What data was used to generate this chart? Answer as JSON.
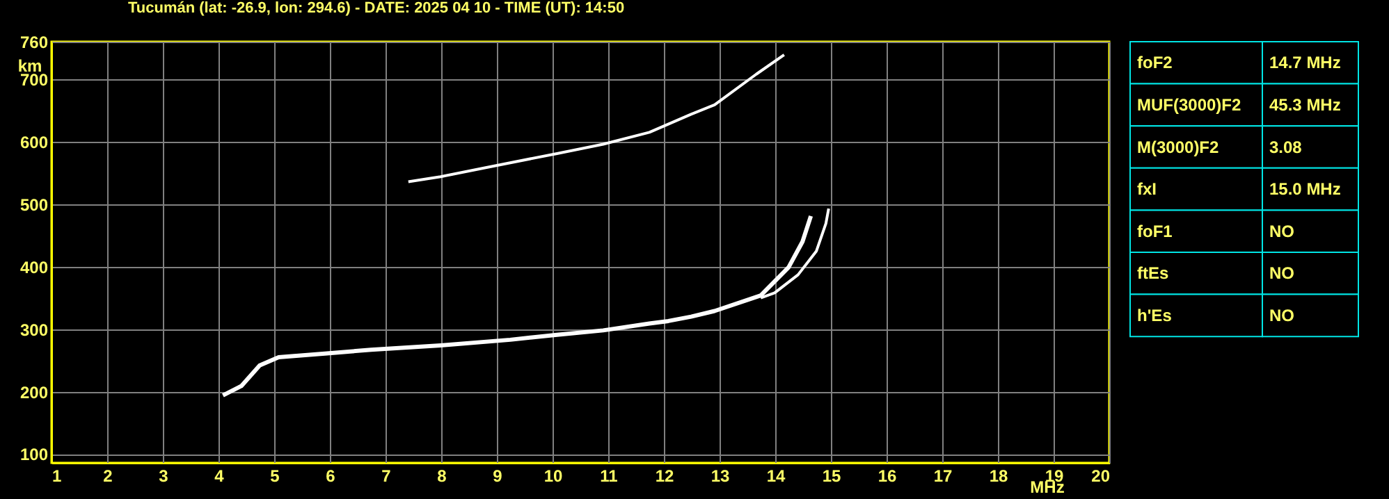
{
  "chart_data": {
    "type": "line",
    "title": "Tucumán (lat: -26.9, lon: 294.6) - DATE: 2025 04 10 - TIME (UT): 14:50",
    "xlabel": "MHz",
    "ylabel": "km",
    "xlim": [
      1,
      20
    ],
    "xticks": [
      1,
      2,
      3,
      4,
      5,
      6,
      7,
      8,
      9,
      10,
      11,
      12,
      13,
      14,
      15,
      16,
      17,
      18,
      19,
      20
    ],
    "ylim": [
      86,
      760
    ],
    "yticks": [
      100,
      200,
      300,
      400,
      500,
      600,
      700,
      760
    ],
    "grid": true,
    "marker": "none",
    "line_style": "solid",
    "series": [
      {
        "color": "#ffffff",
        "x": [
          4.08,
          4.41,
          4.74,
          5.08,
          5.91,
          6.74,
          7.99,
          9.24,
          10.08,
          10.91,
          11.74,
          12.08,
          12.49,
          12.91,
          13.74,
          14.24,
          14.49,
          14.64
        ],
        "values": [
          194,
          209,
          242,
          255,
          261,
          267,
          274,
          283,
          291,
          298,
          309,
          313,
          320,
          329,
          354,
          399,
          440,
          481
        ]
      },
      {
        "color": "#ffffff",
        "x": [
          13.74,
          13.99,
          14.41,
          14.74,
          14.91,
          14.96
        ],
        "values": [
          350,
          358,
          387,
          425,
          469,
          493
        ]
      },
      {
        "color": "#ffffff",
        "x": [
          7.41,
          7.99,
          8.83,
          10.08,
          10.91,
          11.74,
          12.49,
          12.91,
          13.66,
          14.16
        ],
        "values": [
          536,
          544,
          559,
          581,
          596,
          615,
          644,
          659,
          708,
          739
        ]
      }
    ],
    "annotations": [
      "foF2",
      "14.7 MHz",
      "MUF(3000)F2",
      "45.3 MHz",
      "M(3000)F2",
      "3.08",
      "fxI",
      "15.0 MHz",
      "foF1",
      "NO",
      "ftEs",
      "NO",
      "h'Es",
      "NO"
    ]
  }
}
